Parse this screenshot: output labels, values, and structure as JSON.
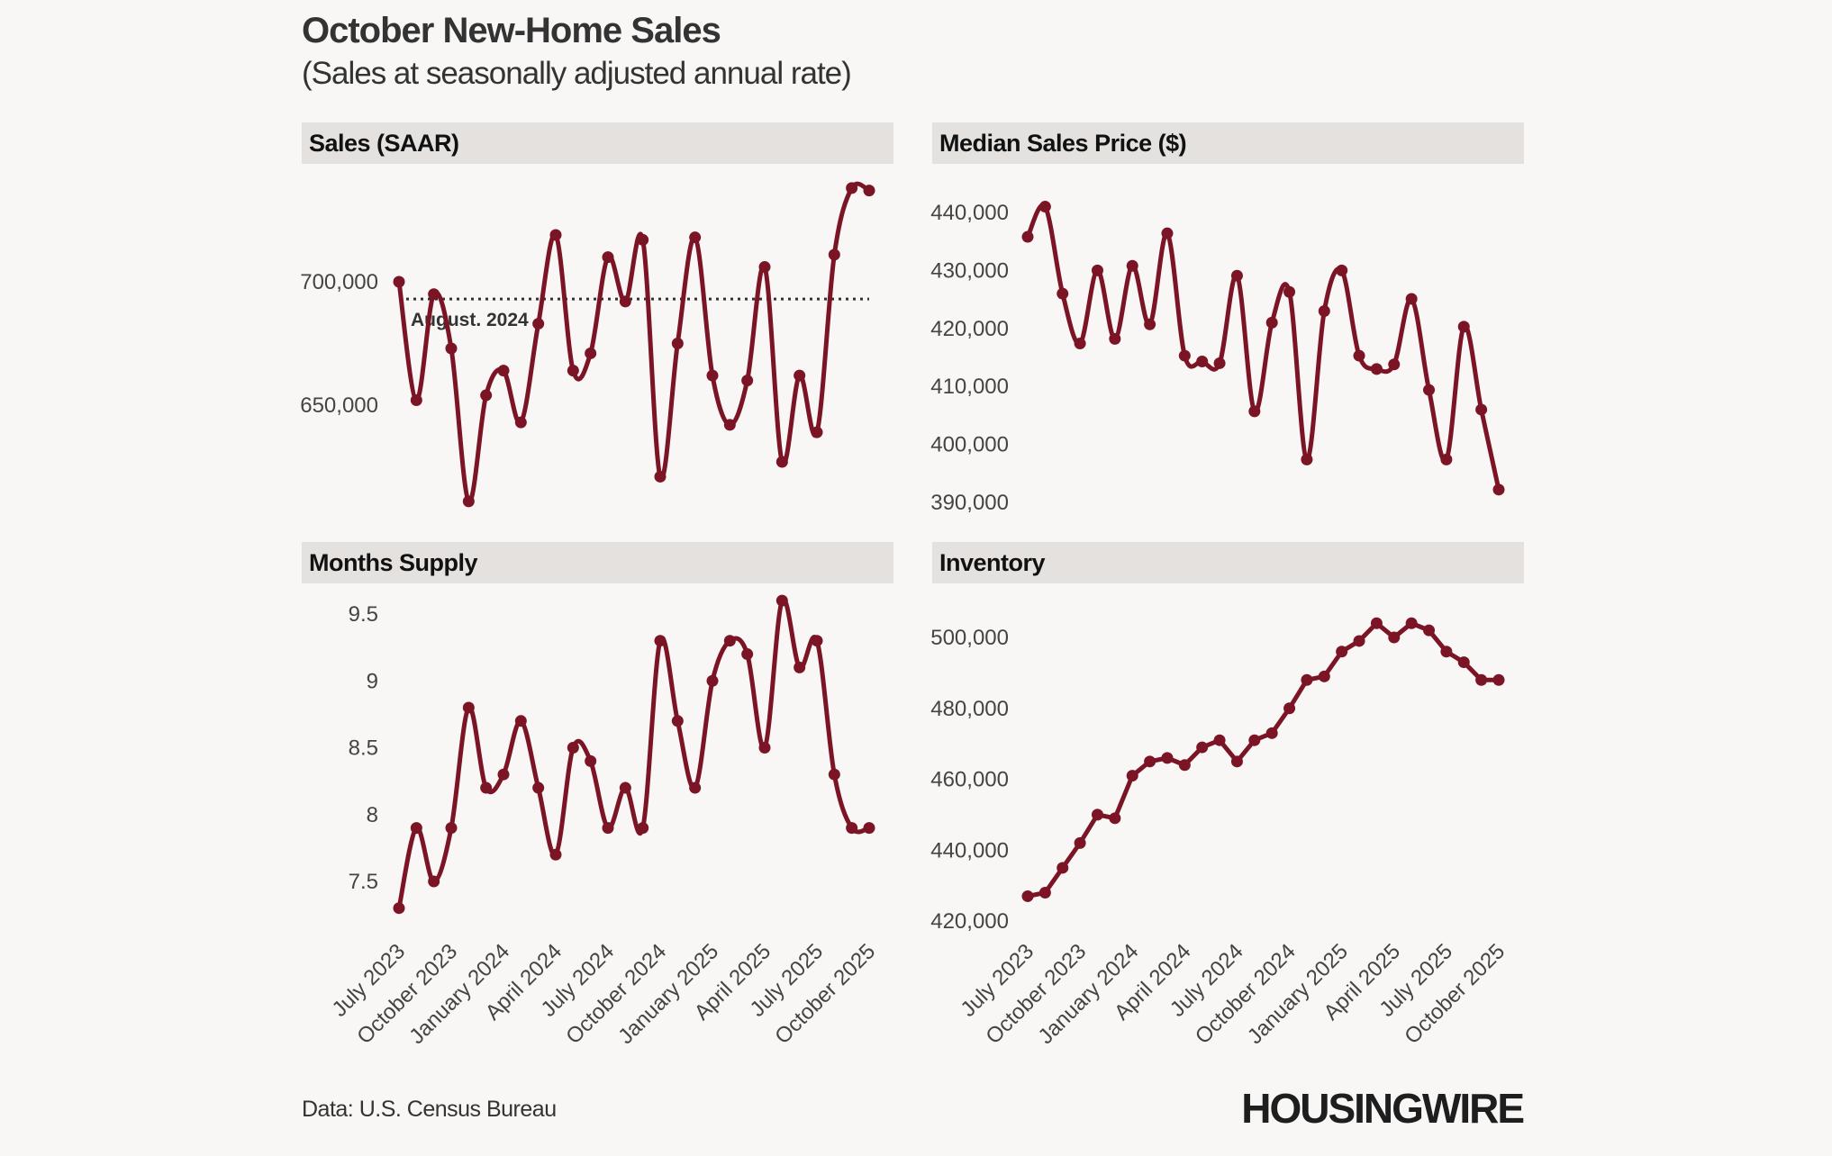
{
  "header": {
    "title": "October New-Home Sales",
    "subtitle": "(Sales at seasonally adjusted annual rate)"
  },
  "footer": {
    "source": "Data: U.S. Census Bureau",
    "logo": "HOUSINGWIRE"
  },
  "colors": {
    "line": "#7b1526",
    "panel_header": "#e4e1df",
    "background": "#f8f7f5"
  },
  "chart_data": [
    {
      "type": "line",
      "title": "Sales (SAAR)",
      "x": [
        "July 2023",
        "Aug 2023",
        "Sep 2023",
        "October 2023",
        "Nov 2023",
        "Dec 2023",
        "January 2024",
        "Feb 2024",
        "Mar 2024",
        "April 2024",
        "May 2024",
        "Jun 2024",
        "July 2024",
        "Aug 2024",
        "Sep 2024",
        "October 2024",
        "Nov 2024",
        "Dec 2024",
        "January 2025",
        "Feb 2025",
        "Mar 2025",
        "April 2025",
        "May 2025",
        "Jun 2025",
        "July 2025",
        "Aug 2025",
        "Sep 2025",
        "October 2025"
      ],
      "x_tick_labels": [
        "July 2023",
        "October 2023",
        "January 2024",
        "April 2024",
        "July 2024",
        "October 2024",
        "January 2025",
        "April 2025",
        "July 2025",
        "October 2025"
      ],
      "values": [
        700000,
        652000,
        695000,
        673000,
        611000,
        654000,
        664000,
        643000,
        683000,
        719000,
        664000,
        671000,
        710000,
        692000,
        717000,
        621000,
        675000,
        718000,
        662000,
        642000,
        660000,
        706000,
        627000,
        662000,
        639000,
        711000,
        738000,
        737000
      ],
      "y_ticks": [
        650000,
        700000
      ],
      "y_tick_labels": [
        "650,000",
        "700,000"
      ],
      "ylim": [
        605000,
        745000
      ],
      "reference_line": {
        "value": 693000,
        "label": "August. 2024"
      }
    },
    {
      "type": "line",
      "title": "Median Sales Price ($)",
      "values": [
        435800,
        441000,
        426000,
        417400,
        430000,
        418200,
        430800,
        420700,
        436400,
        415300,
        414300,
        414000,
        429100,
        405700,
        421000,
        426300,
        397400,
        423000,
        430000,
        415300,
        413000,
        413800,
        425100,
        409400,
        397400,
        420300,
        406000,
        392200
      ],
      "y_ticks": [
        390000,
        400000,
        410000,
        420000,
        430000,
        440000
      ],
      "y_tick_labels": [
        "390,000",
        "400,000",
        "410,000",
        "420,000",
        "430,000",
        "440,000"
      ],
      "ylim": [
        388000,
        444000
      ]
    },
    {
      "type": "line",
      "title": "Months Supply",
      "values": [
        7.3,
        7.9,
        7.5,
        7.9,
        8.8,
        8.2,
        8.3,
        8.7,
        8.2,
        7.7,
        8.5,
        8.4,
        7.9,
        8.2,
        7.9,
        9.3,
        8.7,
        8.2,
        9.0,
        9.3,
        9.2,
        8.5,
        9.6,
        9.1,
        9.3,
        8.3,
        7.9,
        7.9
      ],
      "y_ticks": [
        7.5,
        8,
        8.5,
        9,
        9.5
      ],
      "y_tick_labels": [
        "7.5",
        "8",
        "8.5",
        "9",
        "9.5"
      ],
      "ylim": [
        7.2,
        9.7
      ]
    },
    {
      "type": "line",
      "title": "Inventory",
      "values": [
        427000,
        428000,
        435000,
        442000,
        450000,
        449000,
        461000,
        465000,
        466000,
        464000,
        469000,
        471000,
        465000,
        471000,
        473000,
        480000,
        488000,
        489000,
        496000,
        499000,
        504000,
        500000,
        504000,
        502000,
        496000,
        493000,
        488000,
        488000
      ],
      "y_ticks": [
        420000,
        440000,
        460000,
        480000,
        500000
      ],
      "y_tick_labels": [
        "420,000",
        "440,000",
        "460,000",
        "480,000",
        "500,000"
      ],
      "ylim": [
        418000,
        508000
      ]
    }
  ]
}
